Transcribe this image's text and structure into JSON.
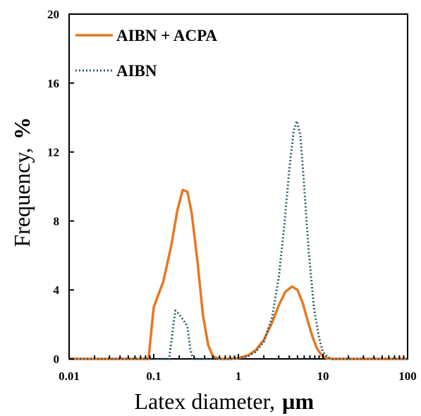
{
  "chart_data": {
    "type": "line",
    "x_scale": "log",
    "xlim": [
      0.01,
      100
    ],
    "ylim": [
      0,
      20
    ],
    "x_ticks": [
      "0.01",
      "0.1",
      "1",
      "10",
      "100"
    ],
    "y_ticks": [
      "0",
      "4",
      "8",
      "12",
      "16",
      "20"
    ],
    "xlabel": "Latex diameter,",
    "xlabel_unit": "µm",
    "ylabel": "Frequency,",
    "ylabel_unit": "%",
    "legend_position": "top-left",
    "grid": false,
    "series": [
      {
        "name": "AIBN + ACPA",
        "color": "#E87722",
        "style": "solid",
        "x": [
          0.01,
          0.08,
          0.087,
          0.093,
          0.1,
          0.13,
          0.16,
          0.19,
          0.22,
          0.25,
          0.28,
          0.33,
          0.38,
          0.44,
          0.5,
          0.6,
          0.8,
          1.0,
          1.3,
          1.6,
          2.0,
          2.5,
          3.0,
          3.6,
          4.3,
          5.0,
          5.8,
          6.6,
          7.5,
          8.5,
          9.7,
          11.0,
          12.5,
          14.0,
          100
        ],
        "y": [
          0,
          0,
          0,
          1.5,
          3.0,
          4.5,
          6.5,
          8.6,
          9.8,
          9.7,
          8.5,
          5.6,
          2.6,
          0.8,
          0.15,
          0,
          0,
          0.05,
          0.2,
          0.5,
          1.1,
          2.1,
          3.1,
          3.9,
          4.2,
          4.0,
          3.2,
          2.2,
          1.3,
          0.6,
          0.2,
          0.05,
          0,
          0,
          0
        ]
      },
      {
        "name": "AIBN",
        "color": "#2E5D6B",
        "style": "dotted",
        "x": [
          0.01,
          0.14,
          0.152,
          0.165,
          0.18,
          0.2,
          0.22,
          0.25,
          0.27,
          0.29,
          0.31,
          0.9,
          1.0,
          1.3,
          1.6,
          2.0,
          2.5,
          3.0,
          3.5,
          4.0,
          4.5,
          4.9,
          5.4,
          6.0,
          6.8,
          7.8,
          9.0,
          10.0,
          11.5,
          13.0,
          15.0,
          100
        ],
        "y": [
          0,
          0,
          0,
          1.4,
          2.8,
          2.6,
          2.3,
          1.9,
          0.6,
          0,
          0,
          0,
          0.02,
          0.15,
          0.4,
          1.0,
          2.4,
          4.7,
          7.8,
          11.0,
          13.2,
          13.8,
          13.0,
          10.0,
          6.2,
          3.0,
          1.2,
          0.4,
          0.08,
          0,
          0,
          0
        ]
      }
    ]
  }
}
